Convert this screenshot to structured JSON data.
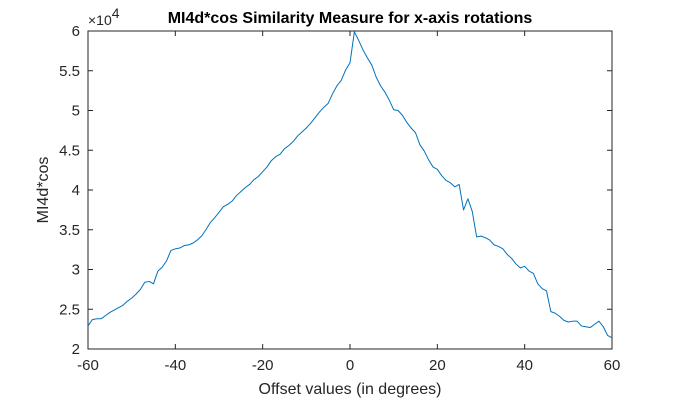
{
  "chart_data": {
    "type": "line",
    "title": "MI4d*cos Similarity Measure for x-axis rotations",
    "xlabel": "Offset values (in degrees)",
    "ylabel": "MI4d*cos",
    "y_exponent": {
      "base": "×10",
      "power": "4"
    },
    "xlim": [
      -60,
      60
    ],
    "ylim": [
      20000,
      60000
    ],
    "x_ticks": [
      -60,
      -40,
      -20,
      0,
      20,
      40,
      60
    ],
    "x_tick_labels": [
      "-60",
      "-40",
      "-20",
      "0",
      "20",
      "40",
      "60"
    ],
    "y_ticks": [
      20000,
      25000,
      30000,
      35000,
      40000,
      45000,
      50000,
      55000,
      60000
    ],
    "y_tick_labels": [
      "2",
      "2.5",
      "3",
      "3.5",
      "4",
      "4.5",
      "5",
      "5.5",
      "6"
    ],
    "grid": false,
    "series": [
      {
        "color": "#0072BD",
        "x": [
          -60,
          -59,
          -58,
          -57,
          -56,
          -55,
          -54,
          -53,
          -52,
          -51,
          -50,
          -49,
          -48,
          -47,
          -46,
          -45,
          -44,
          -43,
          -42,
          -41,
          -40,
          -39,
          -38,
          -37,
          -36,
          -35,
          -34,
          -33,
          -32,
          -31,
          -30,
          -29,
          -28,
          -27,
          -26,
          -25,
          -24,
          -23,
          -22,
          -21,
          -20,
          -19,
          -18,
          -17,
          -16,
          -15,
          -14,
          -13,
          -12,
          -11,
          -10,
          -9,
          -8,
          -7,
          -6,
          -5,
          -4,
          -3,
          -2,
          -1,
          0,
          1,
          2,
          3,
          4,
          5,
          6,
          7,
          8,
          9,
          10,
          11,
          12,
          13,
          14,
          15,
          16,
          17,
          18,
          19,
          20,
          21,
          22,
          23,
          24,
          25,
          26,
          27,
          28,
          29,
          30,
          31,
          32,
          33,
          34,
          35,
          36,
          37,
          38,
          39,
          40,
          41,
          42,
          43,
          44,
          45,
          46,
          47,
          48,
          49,
          50,
          51,
          52,
          53,
          54,
          55,
          56,
          57,
          58,
          59,
          60
        ],
        "y": [
          22900,
          23700,
          23800,
          23800,
          24200,
          24600,
          24900,
          25200,
          25500,
          26000,
          26400,
          26900,
          27500,
          28400,
          28500,
          28200,
          29800,
          30300,
          31100,
          32400,
          32600,
          32700,
          33000,
          33100,
          33300,
          33700,
          34200,
          35000,
          35900,
          36500,
          37200,
          37900,
          38200,
          38600,
          39300,
          39800,
          40300,
          40700,
          41300,
          41700,
          42300,
          42900,
          43700,
          44200,
          44500,
          45200,
          45600,
          46100,
          46800,
          47300,
          47800,
          48400,
          49100,
          49800,
          50400,
          50900,
          52100,
          53100,
          53800,
          55100,
          56000,
          59900,
          58800,
          57600,
          56600,
          55700,
          54200,
          53100,
          52300,
          51300,
          50100,
          50000,
          49400,
          48500,
          47800,
          47200,
          45700,
          44900,
          43800,
          42900,
          42600,
          41800,
          41200,
          40900,
          40400,
          40700,
          37500,
          38900,
          37300,
          34100,
          34200,
          34000,
          33700,
          33100,
          32900,
          32600,
          31900,
          31400,
          30700,
          30200,
          30400,
          29800,
          29500,
          28200,
          27600,
          27300,
          24700,
          24500,
          24100,
          23600,
          23400,
          23500,
          23500,
          22900,
          22800,
          22700,
          23100,
          23500,
          22800,
          21700,
          21400
        ]
      }
    ]
  }
}
